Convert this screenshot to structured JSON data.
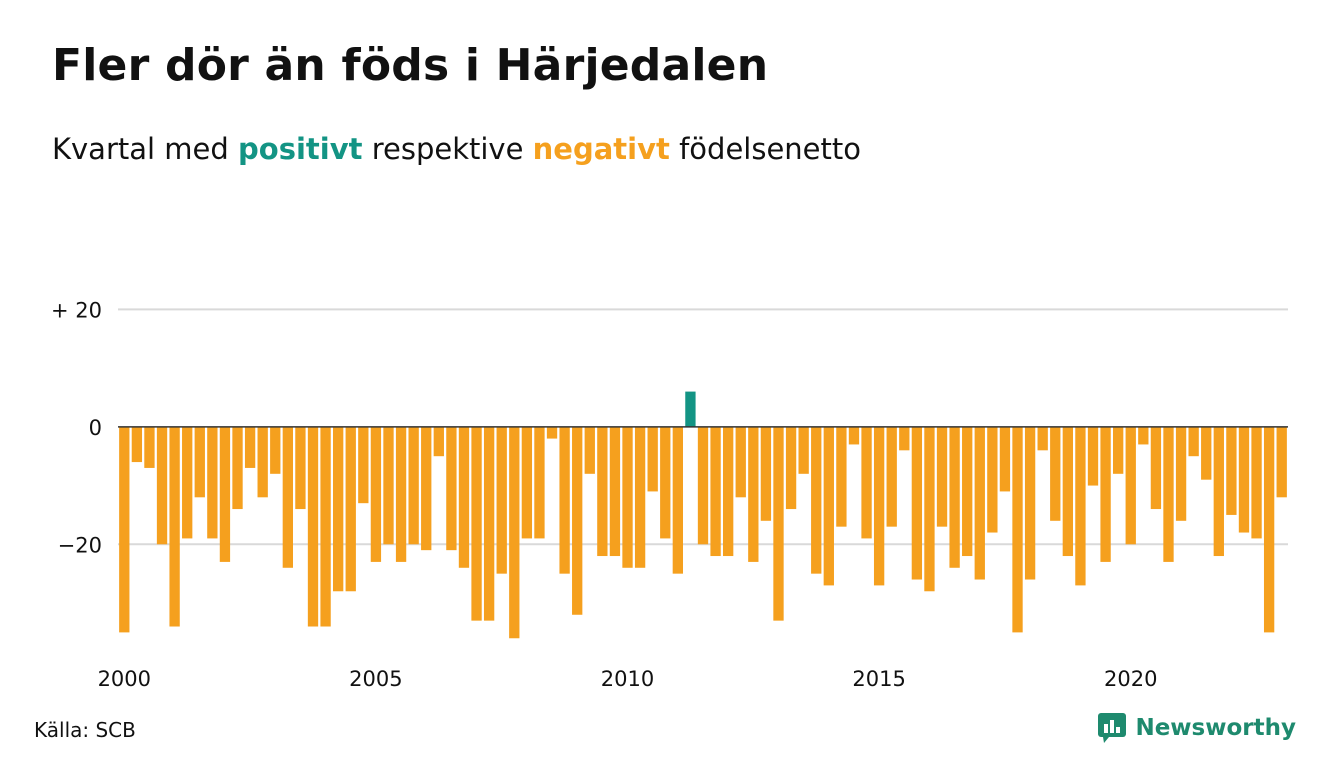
{
  "header": {
    "title": "Fler dör än föds i Härjedalen",
    "subtitle_part1": "Kvartal med ",
    "subtitle_positive": "positivt",
    "subtitle_part2": " respektive ",
    "subtitle_negative": "negativt",
    "subtitle_part3": " födelsenetto"
  },
  "footer": {
    "source": "Källa: SCB",
    "brand": "Newsworthy"
  },
  "colors": {
    "positive": "#139484",
    "negative": "#f5a01e",
    "gridline": "#d9d9d9",
    "zeroline": "#333333",
    "brand": "#1e8a6e"
  },
  "chart_data": {
    "type": "bar",
    "x_start_year": 2000,
    "periods_per_year": 4,
    "xticks": [
      "2000",
      "2005",
      "2010",
      "2015",
      "2020"
    ],
    "yticks": [
      "+ 20",
      "0",
      "−20"
    ],
    "ytick_values": [
      20,
      0,
      -20
    ],
    "ylim": [
      -38,
      25
    ],
    "grid": true,
    "values": [
      -35,
      -6,
      -7,
      -20,
      -34,
      -19,
      -12,
      -19,
      -23,
      -14,
      -7,
      -12,
      -8,
      -24,
      -14,
      -34,
      -34,
      -28,
      -28,
      -13,
      -23,
      -20,
      -23,
      -20,
      -21,
      -5,
      -21,
      -24,
      -33,
      -33,
      -25,
      -36,
      -19,
      -19,
      -2,
      -25,
      -32,
      -8,
      -22,
      -22,
      -24,
      -24,
      -11,
      -19,
      -25,
      6,
      -20,
      -22,
      -22,
      -12,
      -23,
      -16,
      -33,
      -14,
      -8,
      -25,
      -27,
      -17,
      -3,
      -19,
      -27,
      -17,
      -4,
      -26,
      -28,
      -17,
      -24,
      -22,
      -26,
      -18,
      -11,
      -35,
      -26,
      -4,
      -16,
      -22,
      -27,
      -10,
      -23,
      -8,
      -20,
      -3,
      -14,
      -23,
      -16,
      -5,
      -9,
      -22,
      -15,
      -18,
      -19,
      -35,
      -12
    ]
  }
}
